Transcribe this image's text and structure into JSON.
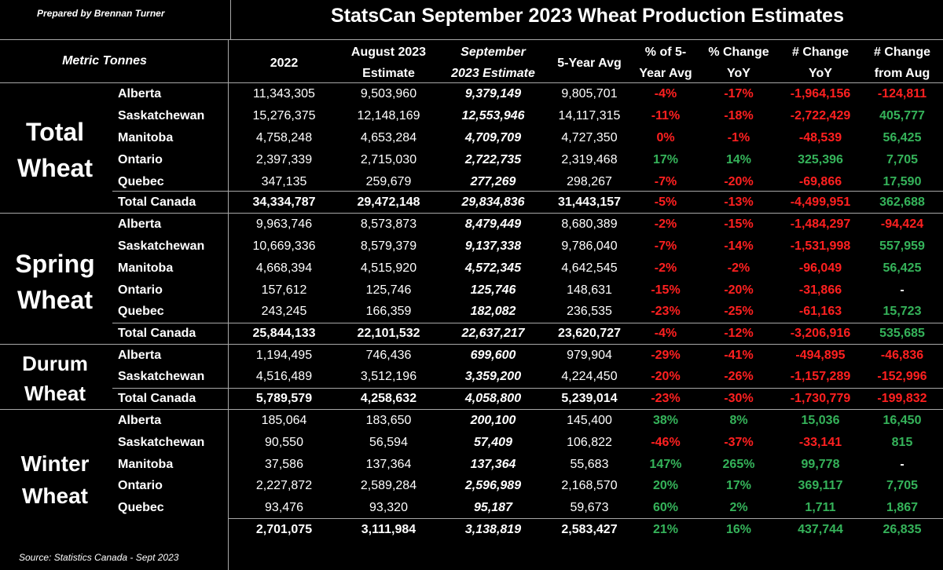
{
  "header": {
    "prepared_by": "Prepared by Brennan Turner",
    "title": "StatsCan September 2023 Wheat Production Estimates",
    "units": "Metric Tonnes",
    "columns": [
      {
        "line1": "2022",
        "line2": ""
      },
      {
        "line1": "August 2023",
        "line2": "Estimate"
      },
      {
        "line1": "September",
        "line2": "2023 Estimate"
      },
      {
        "line1": "5-Year Avg",
        "line2": ""
      },
      {
        "line1": "% of 5-",
        "line2": "Year Avg"
      },
      {
        "line1": "% Change",
        "line2": "YoY"
      },
      {
        "line1": "# Change",
        "line2": "YoY"
      },
      {
        "line1": "# Change",
        "line2": "from Aug"
      }
    ]
  },
  "sections": [
    {
      "name_lines": [
        "Total",
        "Wheat"
      ],
      "rows": [
        {
          "province": "Alberta",
          "v2022": "11,343,305",
          "aug": "9,503,960",
          "sep": "9,379,149",
          "avg5": "9,805,701",
          "pct5": "-4%",
          "pctyoy": "-17%",
          "numyoy": "-1,964,156",
          "numaug": "-124,811"
        },
        {
          "province": "Saskatchewan",
          "v2022": "15,276,375",
          "aug": "12,148,169",
          "sep": "12,553,946",
          "avg5": "14,117,315",
          "pct5": "-11%",
          "pctyoy": "-18%",
          "numyoy": "-2,722,429",
          "numaug": "405,777"
        },
        {
          "province": "Manitoba",
          "v2022": "4,758,248",
          "aug": "4,653,284",
          "sep": "4,709,709",
          "avg5": "4,727,350",
          "pct5": "0%",
          "pctyoy": "-1%",
          "numyoy": "-48,539",
          "numaug": "56,425"
        },
        {
          "province": "Ontario",
          "v2022": "2,397,339",
          "aug": "2,715,030",
          "sep": "2,722,735",
          "avg5": "2,319,468",
          "pct5": "17%",
          "pctyoy": "14%",
          "numyoy": "325,396",
          "numaug": "7,705"
        },
        {
          "province": "Quebec",
          "v2022": "347,135",
          "aug": "259,679",
          "sep": "277,269",
          "avg5": "298,267",
          "pct5": "-7%",
          "pctyoy": "-20%",
          "numyoy": "-69,866",
          "numaug": "17,590"
        }
      ],
      "total": {
        "province": "Total Canada",
        "v2022": "34,334,787",
        "aug": "29,472,148",
        "sep": "29,834,836",
        "avg5": "31,443,157",
        "pct5": "-5%",
        "pctyoy": "-13%",
        "numyoy": "-4,499,951",
        "numaug": "362,688"
      }
    },
    {
      "name_lines": [
        "Spring",
        "Wheat"
      ],
      "rows": [
        {
          "province": "Alberta",
          "v2022": "9,963,746",
          "aug": "8,573,873",
          "sep": "8,479,449",
          "avg5": "8,680,389",
          "pct5": "-2%",
          "pctyoy": "-15%",
          "numyoy": "-1,484,297",
          "numaug": "-94,424"
        },
        {
          "province": "Saskatchewan",
          "v2022": "10,669,336",
          "aug": "8,579,379",
          "sep": "9,137,338",
          "avg5": "9,786,040",
          "pct5": "-7%",
          "pctyoy": "-14%",
          "numyoy": "-1,531,998",
          "numaug": "557,959"
        },
        {
          "province": "Manitoba",
          "v2022": "4,668,394",
          "aug": "4,515,920",
          "sep": "4,572,345",
          "avg5": "4,642,545",
          "pct5": "-2%",
          "pctyoy": "-2%",
          "numyoy": "-96,049",
          "numaug": "56,425"
        },
        {
          "province": "Ontario",
          "v2022": "157,612",
          "aug": "125,746",
          "sep": "125,746",
          "avg5": "148,631",
          "pct5": "-15%",
          "pctyoy": "-20%",
          "numyoy": "-31,866",
          "numaug": "-"
        },
        {
          "province": "Quebec",
          "v2022": "243,245",
          "aug": "166,359",
          "sep": "182,082",
          "avg5": "236,535",
          "pct5": "-23%",
          "pctyoy": "-25%",
          "numyoy": "-61,163",
          "numaug": "15,723"
        }
      ],
      "total": {
        "province": "Total Canada",
        "v2022": "25,844,133",
        "aug": "22,101,532",
        "sep": "22,637,217",
        "avg5": "23,620,727",
        "pct5": "-4%",
        "pctyoy": "-12%",
        "numyoy": "-3,206,916",
        "numaug": "535,685"
      }
    },
    {
      "name_lines": [
        "Durum",
        "Wheat"
      ],
      "rows": [
        {
          "province": "Alberta",
          "v2022": "1,194,495",
          "aug": "746,436",
          "sep": "699,600",
          "avg5": "979,904",
          "pct5": "-29%",
          "pctyoy": "-41%",
          "numyoy": "-494,895",
          "numaug": "-46,836"
        },
        {
          "province": "Saskatchewan",
          "v2022": "4,516,489",
          "aug": "3,512,196",
          "sep": "3,359,200",
          "avg5": "4,224,450",
          "pct5": "-20%",
          "pctyoy": "-26%",
          "numyoy": "-1,157,289",
          "numaug": "-152,996"
        }
      ],
      "total": {
        "province": "Total Canada",
        "v2022": "5,789,579",
        "aug": "4,258,632",
        "sep": "4,058,800",
        "avg5": "5,239,014",
        "pct5": "-23%",
        "pctyoy": "-30%",
        "numyoy": "-1,730,779",
        "numaug": "-199,832"
      }
    },
    {
      "name_lines": [
        "Winter",
        "Wheat"
      ],
      "rows": [
        {
          "province": "Alberta",
          "v2022": "185,064",
          "aug": "183,650",
          "sep": "200,100",
          "avg5": "145,400",
          "pct5": "38%",
          "pctyoy": "8%",
          "numyoy": "15,036",
          "numaug": "16,450"
        },
        {
          "province": "Saskatchewan",
          "v2022": "90,550",
          "aug": "56,594",
          "sep": "57,409",
          "avg5": "106,822",
          "pct5": "-46%",
          "pctyoy": "-37%",
          "numyoy": "-33,141",
          "numaug": "815"
        },
        {
          "province": "Manitoba",
          "v2022": "37,586",
          "aug": "137,364",
          "sep": "137,364",
          "avg5": "55,683",
          "pct5": "147%",
          "pctyoy": "265%",
          "numyoy": "99,778",
          "numaug": "-"
        },
        {
          "province": "Ontario",
          "v2022": "2,227,872",
          "aug": "2,589,284",
          "sep": "2,596,989",
          "avg5": "2,168,570",
          "pct5": "20%",
          "pctyoy": "17%",
          "numyoy": "369,117",
          "numaug": "7,705"
        },
        {
          "province": "Quebec",
          "v2022": "93,476",
          "aug": "93,320",
          "sep": "95,187",
          "avg5": "59,673",
          "pct5": "60%",
          "pctyoy": "2%",
          "numyoy": "1,711",
          "numaug": "1,867"
        }
      ],
      "total": {
        "province": "",
        "v2022": "2,701,075",
        "aug": "3,111,984",
        "sep": "3,138,819",
        "avg5": "2,583,427",
        "pct5": "21%",
        "pctyoy": "16%",
        "numyoy": "437,744",
        "numaug": "26,835"
      }
    }
  ],
  "source": "Source: Statistics Canada - Sept 2023",
  "colors": {
    "negative": "#ff2020",
    "positive": "#35b35a",
    "background": "#000000",
    "grid": "#a8a8a8"
  }
}
